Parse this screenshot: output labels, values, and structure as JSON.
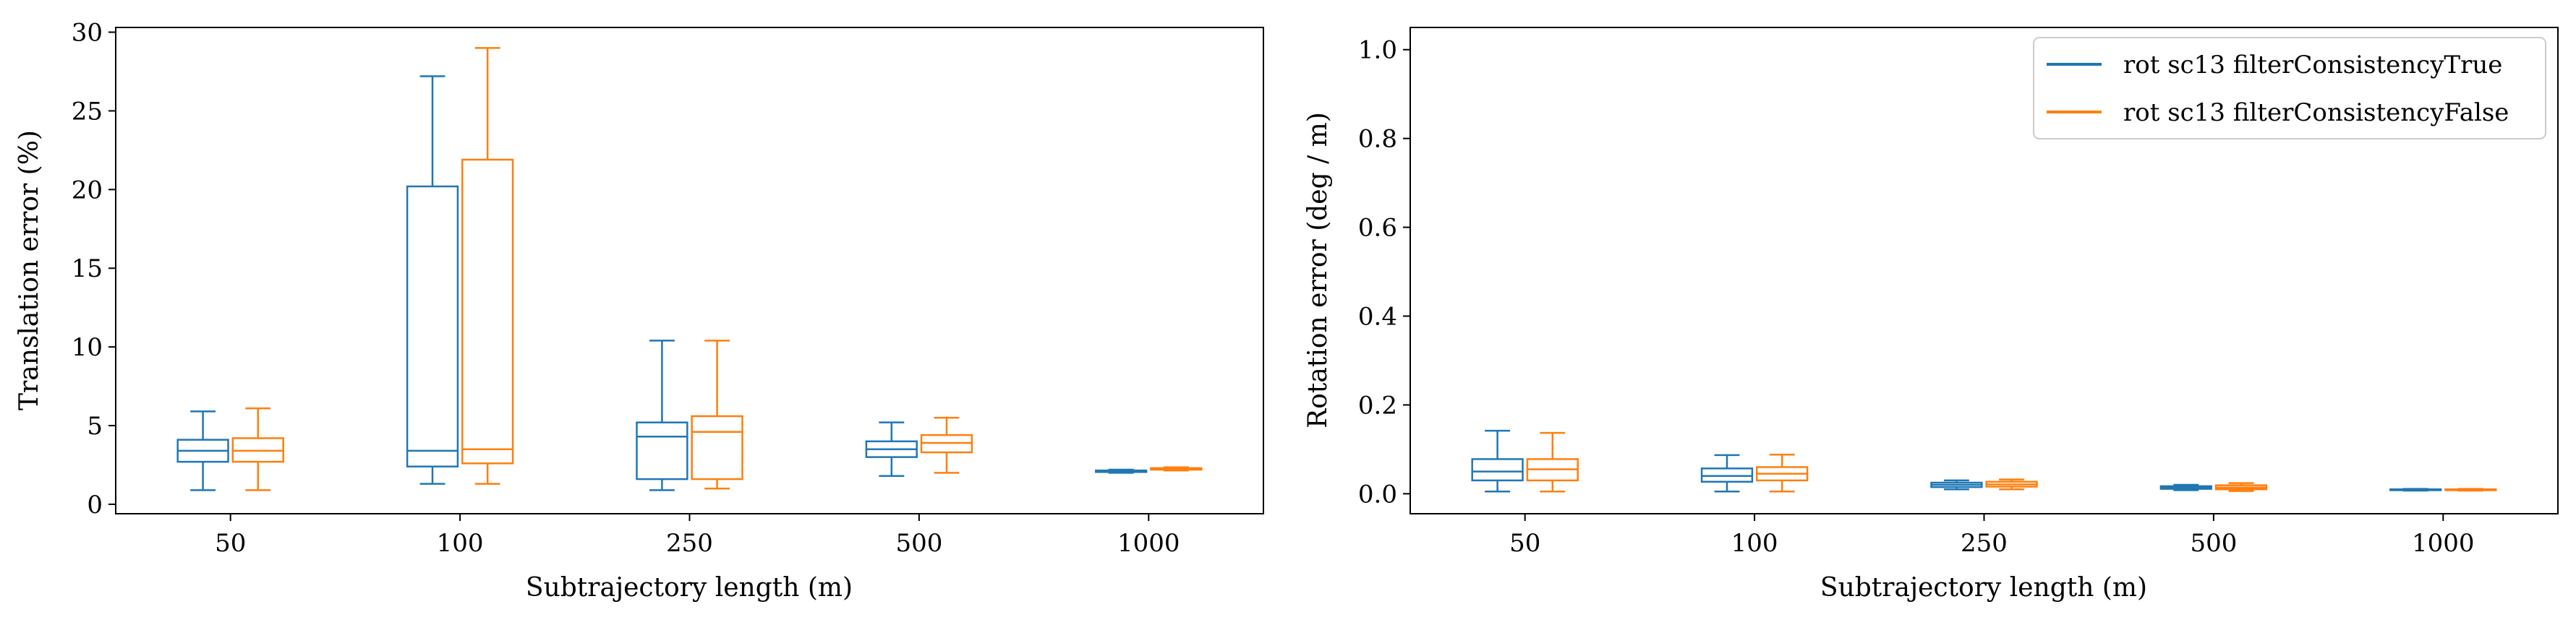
{
  "chart_data": [
    {
      "type": "box",
      "xlabel": "Subtrajectory length (m)",
      "ylabel": "Translation error (%)",
      "categories": [
        "50",
        "100",
        "250",
        "500",
        "1000"
      ],
      "ylim": [
        -0.6,
        30.3
      ],
      "yticks": [
        0,
        5,
        10,
        15,
        20,
        25,
        30
      ],
      "grid": false,
      "series": [
        {
          "color": "#1f77b4",
          "boxes": [
            {
              "whislo": 0.9,
              "q1": 2.7,
              "med": 3.4,
              "q3": 4.1,
              "whishi": 5.9
            },
            {
              "whislo": 1.3,
              "q1": 2.4,
              "med": 3.4,
              "q3": 20.2,
              "whishi": 27.2
            },
            {
              "whislo": 0.9,
              "q1": 1.6,
              "med": 4.3,
              "q3": 5.2,
              "whishi": 10.4
            },
            {
              "whislo": 1.8,
              "q1": 3.0,
              "med": 3.5,
              "q3": 4.0,
              "whishi": 5.2
            },
            {
              "whislo": 2.0,
              "q1": 2.05,
              "med": 2.1,
              "q3": 2.15,
              "whishi": 2.2
            }
          ]
        },
        {
          "color": "#ff7f0e",
          "boxes": [
            {
              "whislo": 0.9,
              "q1": 2.7,
              "med": 3.4,
              "q3": 4.2,
              "whishi": 6.1
            },
            {
              "whislo": 1.3,
              "q1": 2.6,
              "med": 3.5,
              "q3": 21.9,
              "whishi": 29.0
            },
            {
              "whislo": 1.0,
              "q1": 1.6,
              "med": 4.6,
              "q3": 5.6,
              "whishi": 10.4
            },
            {
              "whislo": 2.0,
              "q1": 3.3,
              "med": 3.9,
              "q3": 4.4,
              "whishi": 5.5
            },
            {
              "whislo": 2.15,
              "q1": 2.2,
              "med": 2.25,
              "q3": 2.3,
              "whishi": 2.35
            }
          ]
        }
      ]
    },
    {
      "type": "box",
      "xlabel": "Subtrajectory length (m)",
      "ylabel": "Rotation error (deg / m)",
      "categories": [
        "50",
        "100",
        "250",
        "500",
        "1000"
      ],
      "ylim": [
        -0.045,
        1.05
      ],
      "yticks": [
        "0.0",
        "0.2",
        "0.4",
        "0.6",
        "0.8",
        "1.0"
      ],
      "grid": false,
      "legend_position": "top-right",
      "series": [
        {
          "name": "rot sc13 filterConsistencyTrue",
          "color": "#1f77b4",
          "boxes": [
            {
              "whislo": 0.005,
              "q1": 0.03,
              "med": 0.05,
              "q3": 0.078,
              "whishi": 0.142
            },
            {
              "whislo": 0.005,
              "q1": 0.027,
              "med": 0.04,
              "q3": 0.057,
              "whishi": 0.087
            },
            {
              "whislo": 0.01,
              "q1": 0.015,
              "med": 0.02,
              "q3": 0.025,
              "whishi": 0.03
            },
            {
              "whislo": 0.008,
              "q1": 0.011,
              "med": 0.014,
              "q3": 0.017,
              "whishi": 0.02
            },
            {
              "whislo": 0.007,
              "q1": 0.008,
              "med": 0.009,
              "q3": 0.01,
              "whishi": 0.011
            }
          ]
        },
        {
          "name": "rot sc13 filterConsistencyFalse",
          "color": "#ff7f0e",
          "boxes": [
            {
              "whislo": 0.005,
              "q1": 0.03,
              "med": 0.055,
              "q3": 0.078,
              "whishi": 0.137
            },
            {
              "whislo": 0.005,
              "q1": 0.03,
              "med": 0.045,
              "q3": 0.06,
              "whishi": 0.088
            },
            {
              "whislo": 0.01,
              "q1": 0.016,
              "med": 0.021,
              "q3": 0.027,
              "whishi": 0.032
            },
            {
              "whislo": 0.006,
              "q1": 0.01,
              "med": 0.014,
              "q3": 0.019,
              "whishi": 0.024
            },
            {
              "whislo": 0.007,
              "q1": 0.008,
              "med": 0.009,
              "q3": 0.01,
              "whishi": 0.011
            }
          ]
        }
      ]
    }
  ]
}
